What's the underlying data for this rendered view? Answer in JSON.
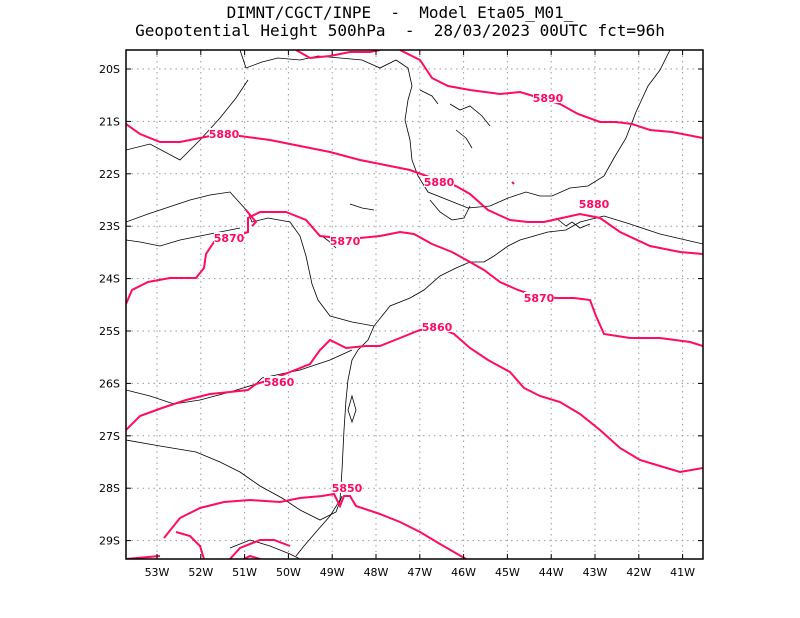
{
  "header": {
    "line1": "DIMNT/CGCT/INPE  -  Model Eta05_M01_",
    "line2": "Geopotential Height 500hPa  -  28/03/2023 00UTC fct=96h"
  },
  "axes": {
    "lat_labels": [
      "20S",
      "21S",
      "22S",
      "23S",
      "24S",
      "25S",
      "26S",
      "27S",
      "28S",
      "29S"
    ],
    "lon_labels": [
      "53W",
      "52W",
      "51W",
      "50W",
      "49W",
      "48W",
      "47W",
      "46W",
      "45W",
      "44W",
      "43W",
      "42W",
      "41W"
    ]
  },
  "contours": {
    "color": "#ff0a64",
    "labels": [
      "5890",
      "5880",
      "5880",
      "5880",
      "5870",
      "5870",
      "5870",
      "5860",
      "5860",
      "5850"
    ]
  },
  "map_style": {
    "coast_color": "#000000",
    "grid": "dotted"
  }
}
